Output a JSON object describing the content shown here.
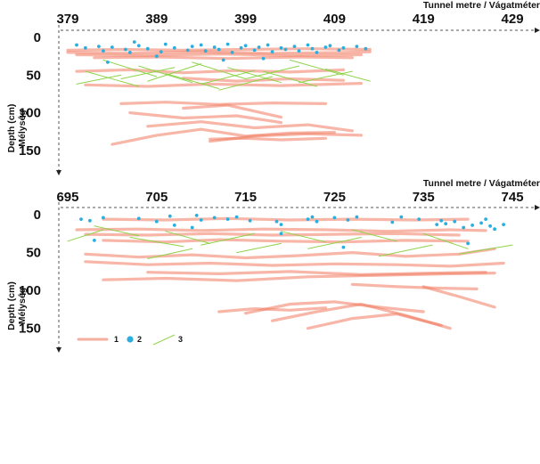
{
  "chart_data": [
    {
      "type": "scatter",
      "x_axis_title": "Tunnel metre / Vágatméter",
      "y_axis_title_1": "Depth (cm)",
      "y_axis_title_2": "Mélység",
      "x_ticks": [
        "379",
        "389",
        "399",
        "409",
        "419",
        "429"
      ],
      "x_tick_values": [
        379,
        389,
        399,
        409,
        419,
        429
      ],
      "y_ticks": [
        "0",
        "50",
        "100",
        "150"
      ],
      "y_tick_values": [
        0,
        50,
        100,
        150
      ],
      "xlim": [
        378.2,
        431.5
      ],
      "ylim": [
        0,
        175
      ],
      "colors": {
        "crack": "#f07a5e",
        "dot": "#2aaee0",
        "green": "#8fd34a"
      },
      "series": [
        {
          "kind": "crack",
          "x": [
            379,
            385,
            392,
            399,
            406,
            413
          ],
          "y": [
            17,
            16,
            17,
            16,
            15,
            16
          ]
        },
        {
          "kind": "crack",
          "x": [
            379,
            386,
            394,
            402,
            410,
            413
          ],
          "y": [
            20,
            21,
            19,
            21,
            20,
            19
          ]
        },
        {
          "kind": "crack",
          "x": [
            380,
            388,
            396,
            404,
            412
          ],
          "y": [
            23,
            24,
            22,
            24,
            23
          ]
        },
        {
          "kind": "crack",
          "x": [
            382,
            389,
            397,
            405,
            411
          ],
          "y": [
            27,
            26,
            28,
            26,
            27
          ]
        },
        {
          "kind": "crack",
          "x": [
            380,
            386,
            392,
            398,
            404,
            410
          ],
          "y": [
            45,
            43,
            47,
            44,
            46,
            43
          ]
        },
        {
          "kind": "crack",
          "x": [
            381,
            388,
            395,
            403,
            412
          ],
          "y": [
            63,
            65,
            62,
            64,
            61
          ]
        },
        {
          "kind": "crack",
          "x": [
            392,
            398,
            404,
            410
          ],
          "y": [
            54,
            58,
            55,
            57
          ]
        },
        {
          "kind": "crack",
          "x": [
            385,
            390,
            396,
            402,
            408
          ],
          "y": [
            88,
            86,
            89,
            87,
            88
          ]
        },
        {
          "kind": "crack",
          "x": [
            386,
            392,
            398,
            403
          ],
          "y": [
            100,
            107,
            104,
            113
          ]
        },
        {
          "kind": "crack",
          "x": [
            388,
            394,
            400,
            406,
            411
          ],
          "y": [
            118,
            112,
            120,
            116,
            124
          ]
        },
        {
          "kind": "crack",
          "x": [
            384,
            389,
            394,
            399,
            404,
            409
          ],
          "y": [
            142,
            130,
            122,
            131,
            127,
            126
          ]
        },
        {
          "kind": "crack",
          "x": [
            395,
            400,
            406,
            412
          ],
          "y": [
            138,
            131,
            128,
            130
          ]
        },
        {
          "kind": "crack",
          "x": [
            392,
            397,
            403
          ],
          "y": [
            94,
            90,
            106
          ]
        },
        {
          "kind": "crack",
          "x": [
            395,
            399,
            403,
            408
          ],
          "y": [
            135,
            134,
            136,
            134
          ]
        },
        {
          "kind": "green",
          "x": [
            381,
            387
          ],
          "y": [
            45,
            65
          ]
        },
        {
          "kind": "green",
          "x": [
            383,
            389
          ],
          "y": [
            30,
            52
          ]
        },
        {
          "kind": "green",
          "x": [
            385,
            391
          ],
          "y": [
            55,
            40
          ]
        },
        {
          "kind": "green",
          "x": [
            387,
            393
          ],
          "y": [
            38,
            60
          ]
        },
        {
          "kind": "green",
          "x": [
            388,
            394
          ],
          "y": [
            58,
            35
          ]
        },
        {
          "kind": "green",
          "x": [
            390,
            396
          ],
          "y": [
            48,
            68
          ]
        },
        {
          "kind": "green",
          "x": [
            393,
            399
          ],
          "y": [
            33,
            55
          ]
        },
        {
          "kind": "green",
          "x": [
            394,
            400
          ],
          "y": [
            62,
            44
          ]
        },
        {
          "kind": "green",
          "x": [
            397,
            403
          ],
          "y": [
            40,
            60
          ]
        },
        {
          "kind": "green",
          "x": [
            399,
            405
          ],
          "y": [
            55,
            38
          ]
        },
        {
          "kind": "green",
          "x": [
            401,
            407
          ],
          "y": [
            45,
            65
          ]
        },
        {
          "kind": "green",
          "x": [
            404,
            410
          ],
          "y": [
            30,
            50
          ]
        },
        {
          "kind": "green",
          "x": [
            405,
            411
          ],
          "y": [
            60,
            45
          ]
        },
        {
          "kind": "green",
          "x": [
            408,
            413
          ],
          "y": [
            42,
            58
          ]
        },
        {
          "kind": "green",
          "x": [
            380,
            385
          ],
          "y": [
            62,
            50
          ]
        },
        {
          "kind": "green",
          "x": [
            396,
            402
          ],
          "y": [
            70,
            52
          ]
        }
      ],
      "dots": {
        "x": [
          380,
          381,
          382.5,
          383,
          384,
          385.5,
          386,
          387,
          388,
          389.5,
          390,
          391,
          392.5,
          393,
          394,
          394.5,
          395.5,
          396,
          397,
          397.5,
          398.5,
          399,
          400,
          400.5,
          401.5,
          402,
          403,
          403.5,
          404.5,
          405,
          406,
          406.5,
          407,
          408,
          408.5,
          409.5,
          410,
          411.5,
          412.5,
          383.5,
          389,
          396.5,
          401,
          386.5
        ],
        "y": [
          10,
          14,
          12,
          18,
          13,
          16,
          20,
          11,
          15,
          19,
          9,
          14,
          17,
          12,
          10,
          18,
          13,
          16,
          9,
          20,
          14,
          11,
          17,
          13,
          10,
          19,
          14,
          16,
          12,
          18,
          10,
          15,
          20,
          13,
          11,
          17,
          14,
          12,
          15,
          33,
          25,
          30,
          28,
          6
        ]
      },
      "legend": []
    },
    {
      "type": "scatter",
      "x_axis_title": "Tunnel metre / Vágatméter",
      "y_axis_title_1": "Depth (cm)",
      "y_axis_title_2": "Mélység",
      "x_ticks": [
        "695",
        "705",
        "715",
        "725",
        "735",
        "745"
      ],
      "x_tick_values": [
        695,
        705,
        715,
        725,
        735,
        745
      ],
      "y_ticks": [
        "0",
        "50",
        "100",
        "150"
      ],
      "y_tick_values": [
        0,
        50,
        100,
        150
      ],
      "xlim": [
        694.2,
        747.5
      ],
      "ylim": [
        0,
        175
      ],
      "colors": {
        "crack": "#f07a5e",
        "dot": "#2aaee0",
        "green": "#8fd34a"
      },
      "series": [
        {
          "kind": "crack",
          "x": [
            699,
            706,
            713,
            720,
            727,
            734,
            740
          ],
          "y": [
            6,
            7,
            5,
            7,
            6,
            7,
            6
          ]
        },
        {
          "kind": "crack",
          "x": [
            696,
            703,
            710,
            717,
            724,
            731,
            738,
            742
          ],
          "y": [
            20,
            19,
            21,
            19,
            20,
            22,
            20,
            21
          ]
        },
        {
          "kind": "crack",
          "x": [
            697,
            704,
            711,
            718,
            725,
            732,
            739
          ],
          "y": [
            26,
            27,
            25,
            27,
            26,
            25,
            27
          ]
        },
        {
          "kind": "crack",
          "x": [
            699,
            706,
            712,
            719,
            726,
            733,
            740
          ],
          "y": [
            34,
            36,
            33,
            35,
            36,
            34,
            35
          ]
        },
        {
          "kind": "crack",
          "x": [
            697,
            703,
            709,
            715,
            721,
            727,
            733,
            739,
            743
          ],
          "y": [
            52,
            56,
            53,
            57,
            54,
            50,
            55,
            52,
            45
          ]
        },
        {
          "kind": "crack",
          "x": [
            697,
            704,
            711,
            718,
            725,
            732,
            738,
            744
          ],
          "y": [
            62,
            66,
            64,
            67,
            65,
            66,
            68,
            64
          ]
        },
        {
          "kind": "crack",
          "x": [
            699,
            706,
            714,
            722,
            730,
            738,
            743
          ],
          "y": [
            86,
            84,
            87,
            82,
            80,
            78,
            77
          ]
        },
        {
          "kind": "crack",
          "x": [
            704,
            712,
            720,
            728,
            736,
            742
          ],
          "y": [
            76,
            78,
            75,
            79,
            77,
            76
          ]
        },
        {
          "kind": "crack",
          "x": [
            735,
            739,
            743
          ],
          "y": [
            95,
            108,
            122
          ]
        },
        {
          "kind": "crack",
          "x": [
            715,
            720,
            725,
            730,
            735
          ],
          "y": [
            130,
            118,
            115,
            122,
            128
          ]
        },
        {
          "kind": "crack",
          "x": [
            718,
            723,
            728,
            733,
            738
          ],
          "y": [
            140,
            128,
            118,
            133,
            150
          ]
        },
        {
          "kind": "crack",
          "x": [
            722,
            727,
            732,
            737
          ],
          "y": [
            150,
            137,
            131,
            146
          ]
        },
        {
          "kind": "crack",
          "x": [
            712,
            716,
            720,
            724
          ],
          "y": [
            128,
            124,
            126,
            123
          ]
        },
        {
          "kind": "crack",
          "x": [
            727,
            732,
            737,
            741
          ],
          "y": [
            92,
            95,
            97,
            98
          ]
        },
        {
          "kind": "green",
          "x": [
            695,
            699
          ],
          "y": [
            35,
            20
          ]
        },
        {
          "kind": "green",
          "x": [
            702,
            708
          ],
          "y": [
            30,
            42
          ]
        },
        {
          "kind": "green",
          "x": [
            706,
            711
          ],
          "y": [
            22,
            38
          ]
        },
        {
          "kind": "green",
          "x": [
            710,
            716
          ],
          "y": [
            40,
            25
          ]
        },
        {
          "kind": "green",
          "x": [
            714,
            719
          ],
          "y": [
            50,
            38
          ]
        },
        {
          "kind": "green",
          "x": [
            719,
            724
          ],
          "y": [
            22,
            36
          ]
        },
        {
          "kind": "green",
          "x": [
            722,
            728
          ],
          "y": [
            45,
            30
          ]
        },
        {
          "kind": "green",
          "x": [
            727,
            732
          ],
          "y": [
            20,
            35
          ]
        },
        {
          "kind": "green",
          "x": [
            730,
            736
          ],
          "y": [
            55,
            40
          ]
        },
        {
          "kind": "green",
          "x": [
            735,
            740
          ],
          "y": [
            25,
            45
          ]
        },
        {
          "kind": "green",
          "x": [
            739,
            745
          ],
          "y": [
            52,
            40
          ]
        },
        {
          "kind": "green",
          "x": [
            704,
            709
          ],
          "y": [
            58,
            45
          ]
        },
        {
          "kind": "green",
          "x": [
            698,
            703
          ],
          "y": [
            15,
            28
          ]
        }
      ],
      "dots": {
        "x": [
          696.5,
          697.5,
          699,
          703,
          705,
          706.5,
          707,
          709.5,
          710,
          711.5,
          713,
          714,
          715.5,
          718.5,
          719,
          722,
          722.5,
          723,
          725,
          726.5,
          727.5,
          731.5,
          732.5,
          734.5,
          736.5,
          737,
          737.5,
          738.5,
          739.5,
          740.5,
          741.5,
          742,
          742.5,
          743,
          744,
          698,
          709,
          719,
          726,
          740
        ],
        "y": [
          6,
          8,
          4,
          5,
          9,
          2,
          14,
          1,
          7,
          4,
          6,
          3,
          8,
          9,
          13,
          6,
          3,
          9,
          4,
          7,
          3,
          10,
          3,
          6,
          13,
          8,
          12,
          9,
          17,
          14,
          11,
          6,
          15,
          19,
          13,
          34,
          17,
          25,
          43,
          38
        ]
      },
      "legend": [
        {
          "kind": "crack",
          "label": "1"
        },
        {
          "kind": "dot",
          "label": "2"
        },
        {
          "kind": "green",
          "label": "3"
        }
      ]
    }
  ]
}
